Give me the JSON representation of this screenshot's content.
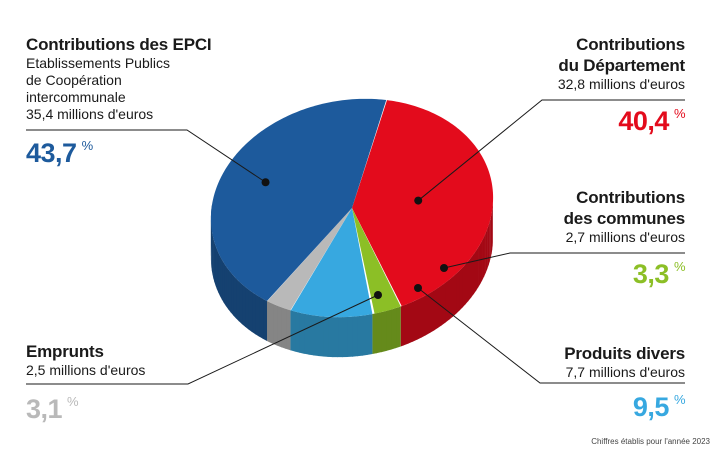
{
  "chart_data": {
    "type": "pie",
    "slices": [
      {
        "key": "departement",
        "value": 40.4,
        "color": "#e30b1c",
        "title_lines": [
          "Contributions",
          "du Département"
        ],
        "amount": "32,8 millions d'euros",
        "percent_label": "40,4"
      },
      {
        "key": "communes",
        "value": 3.3,
        "color": "#8cbf26",
        "title_lines": [
          "Contributions",
          "des communes"
        ],
        "amount": "2,7 millions d'euros",
        "percent_label": "3,3"
      },
      {
        "key": "divers",
        "value": 9.5,
        "color": "#37a8e0",
        "title_lines": [
          "Produits divers"
        ],
        "amount": "7,7 millions d'euros",
        "percent_label": "9,5"
      },
      {
        "key": "emprunts",
        "value": 3.1,
        "color": "#b9b9b9",
        "title_lines": [
          "Emprunts"
        ],
        "amount": "2,5 millions d'euros",
        "percent_label": "3,1"
      },
      {
        "key": "epci",
        "value": 43.7,
        "color": "#1d5a9c",
        "title_lines": [
          "Contributions des EPCI"
        ],
        "desc_lines": [
          "Etablissements Publics",
          "de Coopération",
          "intercommunale"
        ],
        "amount": "35,4 millions d'euros",
        "percent_label": "43,7"
      }
    ],
    "percent_symbol": "%"
  },
  "footnote": "Chiffres établis pour l'année 2023"
}
